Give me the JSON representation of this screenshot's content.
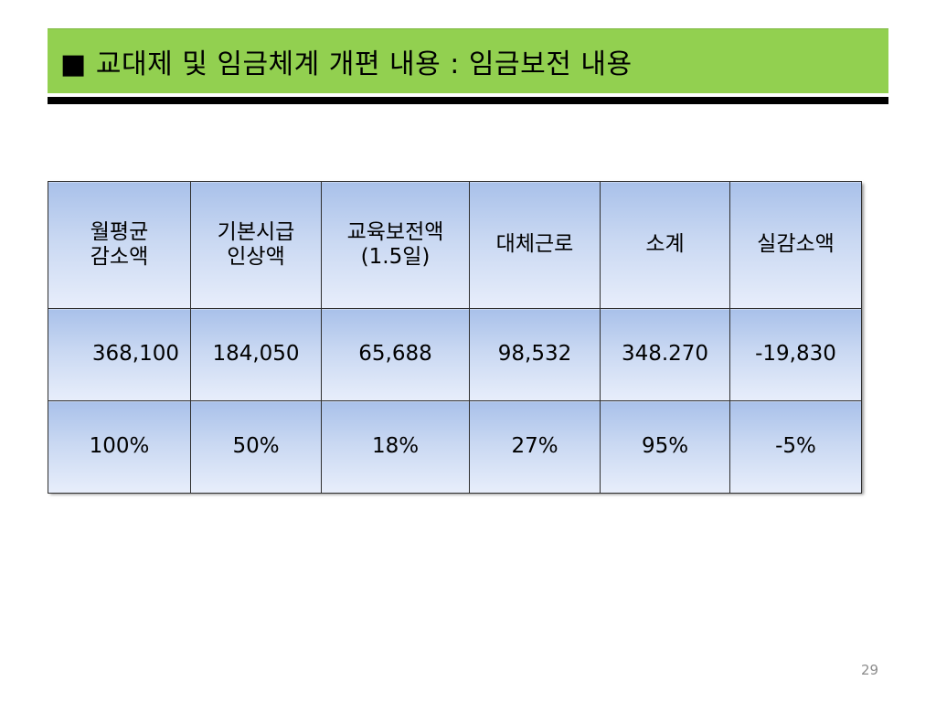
{
  "title": "■ 교대제 및 임금체계 개편 내용 : 임금보전 내용",
  "table": {
    "headers": [
      [
        "월평균",
        "감소액"
      ],
      [
        "기본시급",
        "인상액"
      ],
      [
        "교육보전액",
        "(1.5일)"
      ],
      [
        "대체근로"
      ],
      [
        "소계"
      ],
      [
        "실감소액"
      ]
    ],
    "rows": [
      [
        "368,100",
        "184,050",
        "65,688",
        "98,532",
        "348.270",
        "-19,830"
      ],
      [
        "100%",
        "50%",
        "18%",
        "27%",
        "95%",
        "-5%"
      ]
    ]
  },
  "page_number": "29",
  "colors": {
    "title_bar": "#92d050",
    "table_fill": "#c9d8f2",
    "rule": "#000000"
  }
}
